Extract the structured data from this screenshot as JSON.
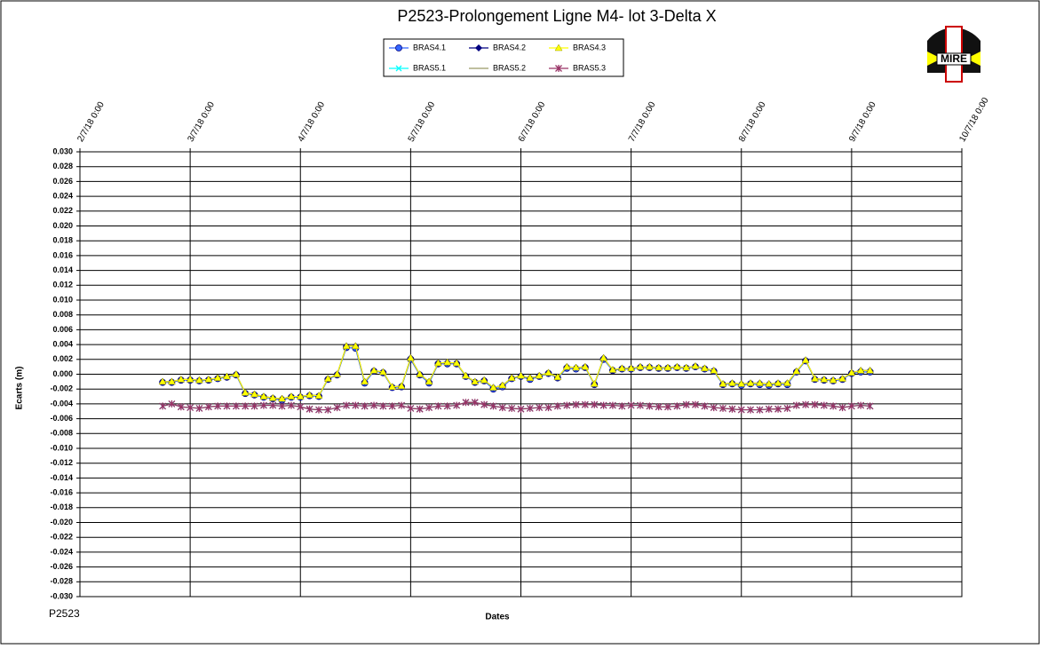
{
  "chart_data": {
    "type": "line",
    "title": "P2523-Prolongement  Ligne  M4- lot 3-Delta X",
    "x_label": "Dates",
    "y_label": "Ecarts (m)",
    "footer": "P2523",
    "logo_text": "MIRE",
    "grid": true,
    "legend_position": "top",
    "xlim": [
      43283,
      43291
    ],
    "xticks": [
      {
        "value": 43283,
        "label": "2/7/18 0:00"
      },
      {
        "value": 43284,
        "label": "3/7/18 0:00"
      },
      {
        "value": 43285,
        "label": "4/7/18 0:00"
      },
      {
        "value": 43286,
        "label": "5/7/18 0:00"
      },
      {
        "value": 43287,
        "label": "6/7/18 0:00"
      },
      {
        "value": 43288,
        "label": "7/7/18 0:00"
      },
      {
        "value": 43289,
        "label": "8/7/18 0:00"
      },
      {
        "value": 43290,
        "label": "9/7/18 0:00"
      },
      {
        "value": 43291,
        "label": "10/7/18 0:00"
      }
    ],
    "ylim": [
      -0.03,
      0.03
    ],
    "yticks": [
      {
        "value": 0.03,
        "label": "0.030"
      },
      {
        "value": 0.028,
        "label": "0.028"
      },
      {
        "value": 0.026,
        "label": "0.026"
      },
      {
        "value": 0.024,
        "label": "0.024"
      },
      {
        "value": 0.022,
        "label": "0.022"
      },
      {
        "value": 0.02,
        "label": "0.020"
      },
      {
        "value": 0.018,
        "label": "0.018"
      },
      {
        "value": 0.016,
        "label": "0.016"
      },
      {
        "value": 0.014,
        "label": "0.014"
      },
      {
        "value": 0.012,
        "label": "0.012"
      },
      {
        "value": 0.01,
        "label": "0.010"
      },
      {
        "value": 0.008,
        "label": "0.008"
      },
      {
        "value": 0.006,
        "label": "0.006"
      },
      {
        "value": 0.004,
        "label": "0.004"
      },
      {
        "value": 0.002,
        "label": "0.002"
      },
      {
        "value": 0,
        "label": "0.000"
      },
      {
        "value": -0.002,
        "label": "-0.002"
      },
      {
        "value": -0.004,
        "label": "-0.004"
      },
      {
        "value": -0.006,
        "label": "-0.006"
      },
      {
        "value": -0.008,
        "label": "-0.008"
      },
      {
        "value": -0.01,
        "label": "-0.010"
      },
      {
        "value": -0.012,
        "label": "-0.012"
      },
      {
        "value": -0.014,
        "label": "-0.014"
      },
      {
        "value": -0.016,
        "label": "-0.016"
      },
      {
        "value": -0.018,
        "label": "-0.018"
      },
      {
        "value": -0.02,
        "label": "-0.020"
      },
      {
        "value": -0.022,
        "label": "-0.022"
      },
      {
        "value": -0.024,
        "label": "-0.024"
      },
      {
        "value": -0.026,
        "label": "-0.026"
      },
      {
        "value": -0.028,
        "label": "-0.028"
      },
      {
        "value": -0.03,
        "label": "-0.030"
      }
    ],
    "x": [
      43283.75,
      43283.833,
      43283.917,
      43284,
      43284.083,
      43284.167,
      43284.25,
      43284.333,
      43284.417,
      43284.5,
      43284.583,
      43284.667,
      43284.75,
      43284.833,
      43284.917,
      43285,
      43285.083,
      43285.167,
      43285.25,
      43285.333,
      43285.417,
      43285.5,
      43285.583,
      43285.667,
      43285.75,
      43285.833,
      43285.917,
      43286,
      43286.083,
      43286.167,
      43286.25,
      43286.333,
      43286.417,
      43286.5,
      43286.583,
      43286.667,
      43286.75,
      43286.833,
      43286.917,
      43287,
      43287.083,
      43287.167,
      43287.25,
      43287.333,
      43287.417,
      43287.5,
      43287.583,
      43287.667,
      43287.75,
      43287.833,
      43287.917,
      43288,
      43288.083,
      43288.167,
      43288.25,
      43288.333,
      43288.417,
      43288.5,
      43288.583,
      43288.667,
      43288.75,
      43288.833,
      43288.917,
      43289,
      43289.083,
      43289.167,
      43289.25,
      43289.333,
      43289.417,
      43289.5,
      43289.583,
      43289.667,
      43289.75,
      43289.833,
      43289.917,
      43290,
      43290.083,
      43290.167
    ],
    "series": [
      {
        "name": "BRAS4.1",
        "color": "#3366ff",
        "marker": "circle",
        "values": [
          -0.0011,
          -0.0011,
          -0.0008,
          -0.0008,
          -0.0009,
          -0.0008,
          -0.0006,
          -0.0004,
          -0.0001,
          -0.0026,
          -0.0028,
          -0.0031,
          -0.0033,
          -0.0035,
          -0.0031,
          -0.0031,
          -0.0029,
          -0.003,
          -0.0007,
          -0.0001,
          0.0036,
          0.0035,
          -0.0012,
          0.0004,
          0.0002,
          -0.0018,
          -0.0017,
          0.002,
          -0.0001,
          -0.0012,
          0.0014,
          0.0014,
          0.0014,
          -0.0003,
          -0.0011,
          -0.0009,
          -0.002,
          -0.0017,
          -0.0006,
          -0.0003,
          -0.0007,
          -0.0003,
          0.0001,
          -0.0005,
          0.0008,
          0.0007,
          0.0009,
          -0.0014,
          0.002,
          0.0005,
          0.0007,
          0.0007,
          0.0009,
          0.0009,
          0.0008,
          0.0008,
          0.0009,
          0.0008,
          0.001,
          0.0007,
          0.0004,
          -0.0014,
          -0.0013,
          -0.0015,
          -0.0013,
          -0.0014,
          -0.0015,
          -0.0013,
          -0.0014,
          0.0003,
          0.0018,
          -0.0007,
          -0.0008,
          -0.0009,
          -0.0007,
          0.0001,
          0.0003,
          0.0003
        ]
      },
      {
        "name": "BRAS4.2",
        "color": "#000080",
        "marker": "diamond",
        "values": [
          -0.001,
          -0.001,
          -0.0007,
          -0.0007,
          -0.0008,
          -0.0007,
          -0.0005,
          -0.0003,
          0,
          -0.0025,
          -0.0027,
          -0.003,
          -0.0032,
          -0.0033,
          -0.003,
          -0.003,
          -0.0028,
          -0.0029,
          -0.0006,
          0,
          0.0038,
          0.0038,
          -0.001,
          0.0005,
          0.0003,
          -0.0017,
          -0.0016,
          0.0022,
          0,
          -0.001,
          0.0015,
          0.0016,
          0.0015,
          -0.0002,
          -0.001,
          -0.0008,
          -0.0018,
          -0.0015,
          -0.0005,
          -0.0002,
          -0.0005,
          -0.0002,
          0.0002,
          -0.0004,
          0.001,
          0.0009,
          0.001,
          -0.0013,
          0.0022,
          0.0006,
          0.0008,
          0.0008,
          0.001,
          0.001,
          0.0009,
          0.0009,
          0.001,
          0.0009,
          0.0011,
          0.0008,
          0.0005,
          -0.0013,
          -0.0012,
          -0.0013,
          -0.0012,
          -0.0012,
          -0.0013,
          -0.0012,
          -0.0012,
          0.0004,
          0.0019,
          -0.0006,
          -0.0007,
          -0.0008,
          -0.0006,
          0.0002,
          0.0005,
          0.0005
        ]
      },
      {
        "name": "BRAS4.3",
        "color": "#ffff00",
        "marker": "triangle",
        "values": [
          -0.001,
          -0.001,
          -0.0007,
          -0.0007,
          -0.0008,
          -0.0007,
          -0.0005,
          -0.0003,
          0,
          -0.0025,
          -0.0027,
          -0.003,
          -0.0032,
          -0.0033,
          -0.003,
          -0.003,
          -0.0028,
          -0.0029,
          -0.0006,
          0,
          0.0038,
          0.0038,
          -0.001,
          0.0005,
          0.0003,
          -0.0017,
          -0.0016,
          0.0022,
          0,
          -0.001,
          0.0015,
          0.0016,
          0.0015,
          -0.0002,
          -0.001,
          -0.0008,
          -0.0018,
          -0.0015,
          -0.0005,
          -0.0002,
          -0.0005,
          -0.0002,
          0.0002,
          -0.0004,
          0.001,
          0.0009,
          0.001,
          -0.0013,
          0.0022,
          0.0006,
          0.0008,
          0.0008,
          0.001,
          0.001,
          0.0009,
          0.0009,
          0.001,
          0.0009,
          0.0011,
          0.0008,
          0.0005,
          -0.0013,
          -0.0012,
          -0.0013,
          -0.0012,
          -0.0012,
          -0.0013,
          -0.0012,
          -0.0012,
          0.0004,
          0.0019,
          -0.0006,
          -0.0007,
          -0.0008,
          -0.0006,
          0.0002,
          0.0005,
          0.0005
        ]
      },
      {
        "name": "BRAS5.1",
        "color": "#00ffff",
        "marker": "x",
        "values": [
          -0.0043,
          -0.004,
          -0.0044,
          -0.0045,
          -0.0046,
          -0.0044,
          -0.0043,
          -0.0043,
          -0.0043,
          -0.0043,
          -0.0043,
          -0.0042,
          -0.0042,
          -0.0043,
          -0.0042,
          -0.0044,
          -0.0047,
          -0.0048,
          -0.0048,
          -0.0045,
          -0.0042,
          -0.0042,
          -0.0043,
          -0.0042,
          -0.0043,
          -0.0043,
          -0.0042,
          -0.0046,
          -0.0047,
          -0.0045,
          -0.0043,
          -0.0043,
          -0.0042,
          -0.0038,
          -0.0038,
          -0.0041,
          -0.0043,
          -0.0045,
          -0.0046,
          -0.0047,
          -0.0046,
          -0.0045,
          -0.0045,
          -0.0043,
          -0.0042,
          -0.0041,
          -0.0041,
          -0.0041,
          -0.0042,
          -0.0042,
          -0.0043,
          -0.0042,
          -0.0042,
          -0.0043,
          -0.0044,
          -0.0044,
          -0.0043,
          -0.0041,
          -0.0041,
          -0.0043,
          -0.0045,
          -0.0046,
          -0.0047,
          -0.0048,
          -0.0048,
          -0.0048,
          -0.0047,
          -0.0047,
          -0.0046,
          -0.0042,
          -0.0041,
          -0.0041,
          -0.0042,
          -0.0043,
          -0.0045,
          -0.0043,
          -0.0042,
          -0.0043
        ]
      },
      {
        "name": "BRAS5.2",
        "color": "#999966",
        "marker": "none",
        "values": [
          -0.0043,
          -0.004,
          -0.0044,
          -0.0045,
          -0.0046,
          -0.0044,
          -0.0043,
          -0.0043,
          -0.0043,
          -0.0043,
          -0.0043,
          -0.0042,
          -0.0042,
          -0.0043,
          -0.0042,
          -0.0044,
          -0.0047,
          -0.0048,
          -0.0048,
          -0.0045,
          -0.0042,
          -0.0042,
          -0.0043,
          -0.0042,
          -0.0043,
          -0.0043,
          -0.0042,
          -0.0046,
          -0.0047,
          -0.0045,
          -0.0043,
          -0.0043,
          -0.0042,
          -0.0038,
          -0.0038,
          -0.0041,
          -0.0043,
          -0.0045,
          -0.0046,
          -0.0047,
          -0.0046,
          -0.0045,
          -0.0045,
          -0.0043,
          -0.0042,
          -0.0041,
          -0.0041,
          -0.0041,
          -0.0042,
          -0.0042,
          -0.0043,
          -0.0042,
          -0.0042,
          -0.0043,
          -0.0044,
          -0.0044,
          -0.0043,
          -0.0041,
          -0.0041,
          -0.0043,
          -0.0045,
          -0.0046,
          -0.0047,
          -0.0048,
          -0.0048,
          -0.0048,
          -0.0047,
          -0.0047,
          -0.0046,
          -0.0042,
          -0.0041,
          -0.0041,
          -0.0042,
          -0.0043,
          -0.0045,
          -0.0043,
          -0.0042,
          -0.0043
        ]
      },
      {
        "name": "BRAS5.3",
        "color": "#993366",
        "marker": "star",
        "values": [
          -0.0043,
          -0.004,
          -0.0044,
          -0.0045,
          -0.0046,
          -0.0044,
          -0.0043,
          -0.0043,
          -0.0043,
          -0.0043,
          -0.0043,
          -0.0042,
          -0.0042,
          -0.0043,
          -0.0042,
          -0.0044,
          -0.0047,
          -0.0048,
          -0.0048,
          -0.0045,
          -0.0042,
          -0.0042,
          -0.0043,
          -0.0042,
          -0.0043,
          -0.0043,
          -0.0042,
          -0.0046,
          -0.0047,
          -0.0045,
          -0.0043,
          -0.0043,
          -0.0042,
          -0.0038,
          -0.0038,
          -0.0041,
          -0.0043,
          -0.0045,
          -0.0046,
          -0.0047,
          -0.0046,
          -0.0045,
          -0.0045,
          -0.0043,
          -0.0042,
          -0.0041,
          -0.0041,
          -0.0041,
          -0.0042,
          -0.0042,
          -0.0043,
          -0.0042,
          -0.0042,
          -0.0043,
          -0.0044,
          -0.0044,
          -0.0043,
          -0.0041,
          -0.0041,
          -0.0043,
          -0.0045,
          -0.0046,
          -0.0047,
          -0.0048,
          -0.0048,
          -0.0048,
          -0.0047,
          -0.0047,
          -0.0046,
          -0.0042,
          -0.0041,
          -0.0041,
          -0.0042,
          -0.0043,
          -0.0045,
          -0.0043,
          -0.0042,
          -0.0043
        ]
      }
    ]
  }
}
